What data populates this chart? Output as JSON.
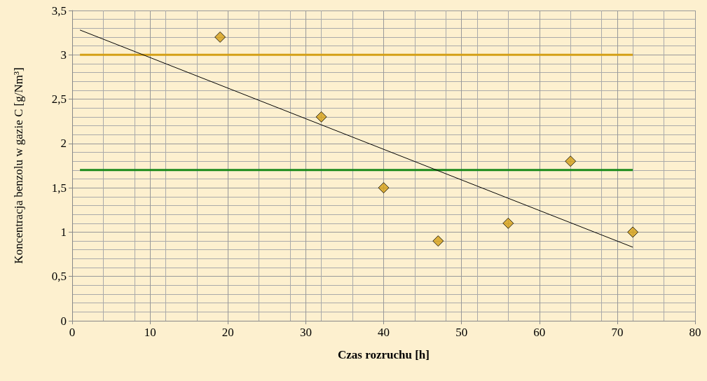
{
  "chart_data": {
    "type": "scatter",
    "xlabel": "Czas rozruchu [h]",
    "ylabel": "Koncentracja benzolu w gazie C [g/Nm³]",
    "xlim": [
      0,
      80
    ],
    "xticks": [
      0,
      10,
      20,
      30,
      40,
      50,
      60,
      70,
      80
    ],
    "ylim": [
      0,
      3.5
    ],
    "yticks": [
      0,
      {
        "value": 0.5,
        "label": "0,5"
      },
      1,
      {
        "value": 1.5,
        "label": "1,5"
      },
      2,
      {
        "value": 2.5,
        "label": "2,5"
      },
      3,
      {
        "value": 3.5,
        "label": "3,5"
      }
    ],
    "grid": true,
    "series": [
      {
        "type": "line",
        "color": "#d4a017",
        "x": [
          1,
          72
        ],
        "values": [
          3,
          3
        ],
        "marker": "none"
      },
      {
        "type": "line",
        "color": "#1a8a1a",
        "x": [
          1,
          72
        ],
        "values": [
          1.7,
          1.7
        ],
        "marker": "none"
      },
      {
        "type": "line",
        "color": "#000000",
        "x": [
          1,
          72
        ],
        "values": [
          3.28,
          0.83
        ],
        "marker": "none"
      },
      {
        "color": "#d4a017",
        "x": [
          19,
          32,
          40,
          47,
          56,
          64,
          72
        ],
        "values": [
          3.2,
          2.3,
          1.5,
          0.9,
          1.1,
          1.8,
          1.0
        ],
        "marker": "diamond"
      }
    ]
  }
}
